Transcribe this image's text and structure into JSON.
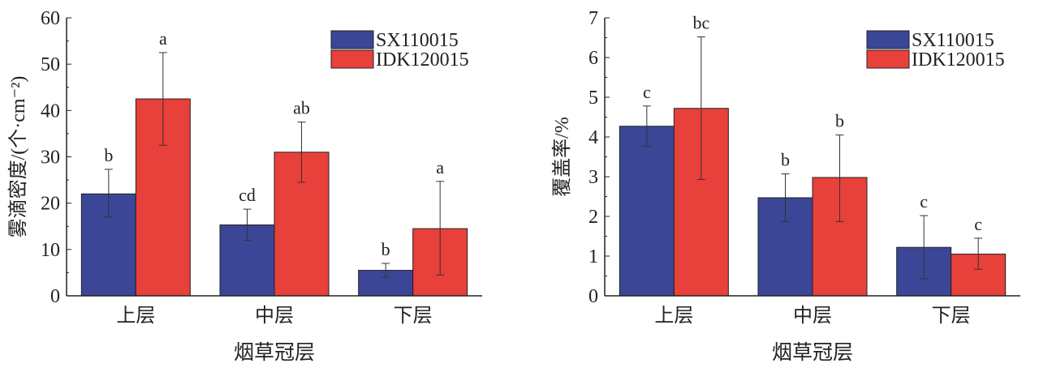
{
  "colors": {
    "SX110015": "#3b4696",
    "IDK120015": "#e8403a"
  },
  "chart_data": [
    {
      "type": "bar",
      "categories": [
        "上层",
        "中层",
        "下层"
      ],
      "xlabel": "烟草冠层",
      "ylabel": "雾滴密度/(个·cm⁻²)",
      "ylim": [
        0,
        60
      ],
      "yticks": [
        0,
        10,
        20,
        30,
        40,
        50,
        60
      ],
      "legend_position": "top-right",
      "series": [
        {
          "name": "SX110015",
          "values": [
            22,
            15.3,
            5.5
          ],
          "err_low": [
            17,
            12,
            4
          ],
          "err_high": [
            27.3,
            18.7,
            7
          ],
          "labels": [
            "b",
            "cd",
            "b"
          ]
        },
        {
          "name": "IDK120015",
          "values": [
            42.5,
            31,
            14.5
          ],
          "err_low": [
            32.5,
            24.5,
            4.5
          ],
          "err_high": [
            52.5,
            37.5,
            24.7
          ],
          "labels": [
            "a",
            "ab",
            "a"
          ]
        }
      ]
    },
    {
      "type": "bar",
      "categories": [
        "上层",
        "中层",
        "下层"
      ],
      "xlabel": "烟草冠层",
      "ylabel": "覆盖率/%",
      "ylim": [
        0,
        7
      ],
      "yticks": [
        0,
        1,
        2,
        3,
        4,
        5,
        6,
        7
      ],
      "legend_position": "top-right",
      "series": [
        {
          "name": "SX110015",
          "values": [
            4.27,
            2.47,
            1.22
          ],
          "err_low": [
            3.77,
            1.87,
            0.43
          ],
          "err_high": [
            4.78,
            3.07,
            2.02
          ],
          "labels": [
            "c",
            "b",
            "c"
          ]
        },
        {
          "name": "IDK120015",
          "values": [
            4.72,
            2.98,
            1.05
          ],
          "err_low": [
            2.93,
            1.87,
            0.67
          ],
          "err_high": [
            6.52,
            4.05,
            1.45
          ],
          "labels": [
            "bc",
            "b",
            "c"
          ]
        }
      ]
    }
  ]
}
